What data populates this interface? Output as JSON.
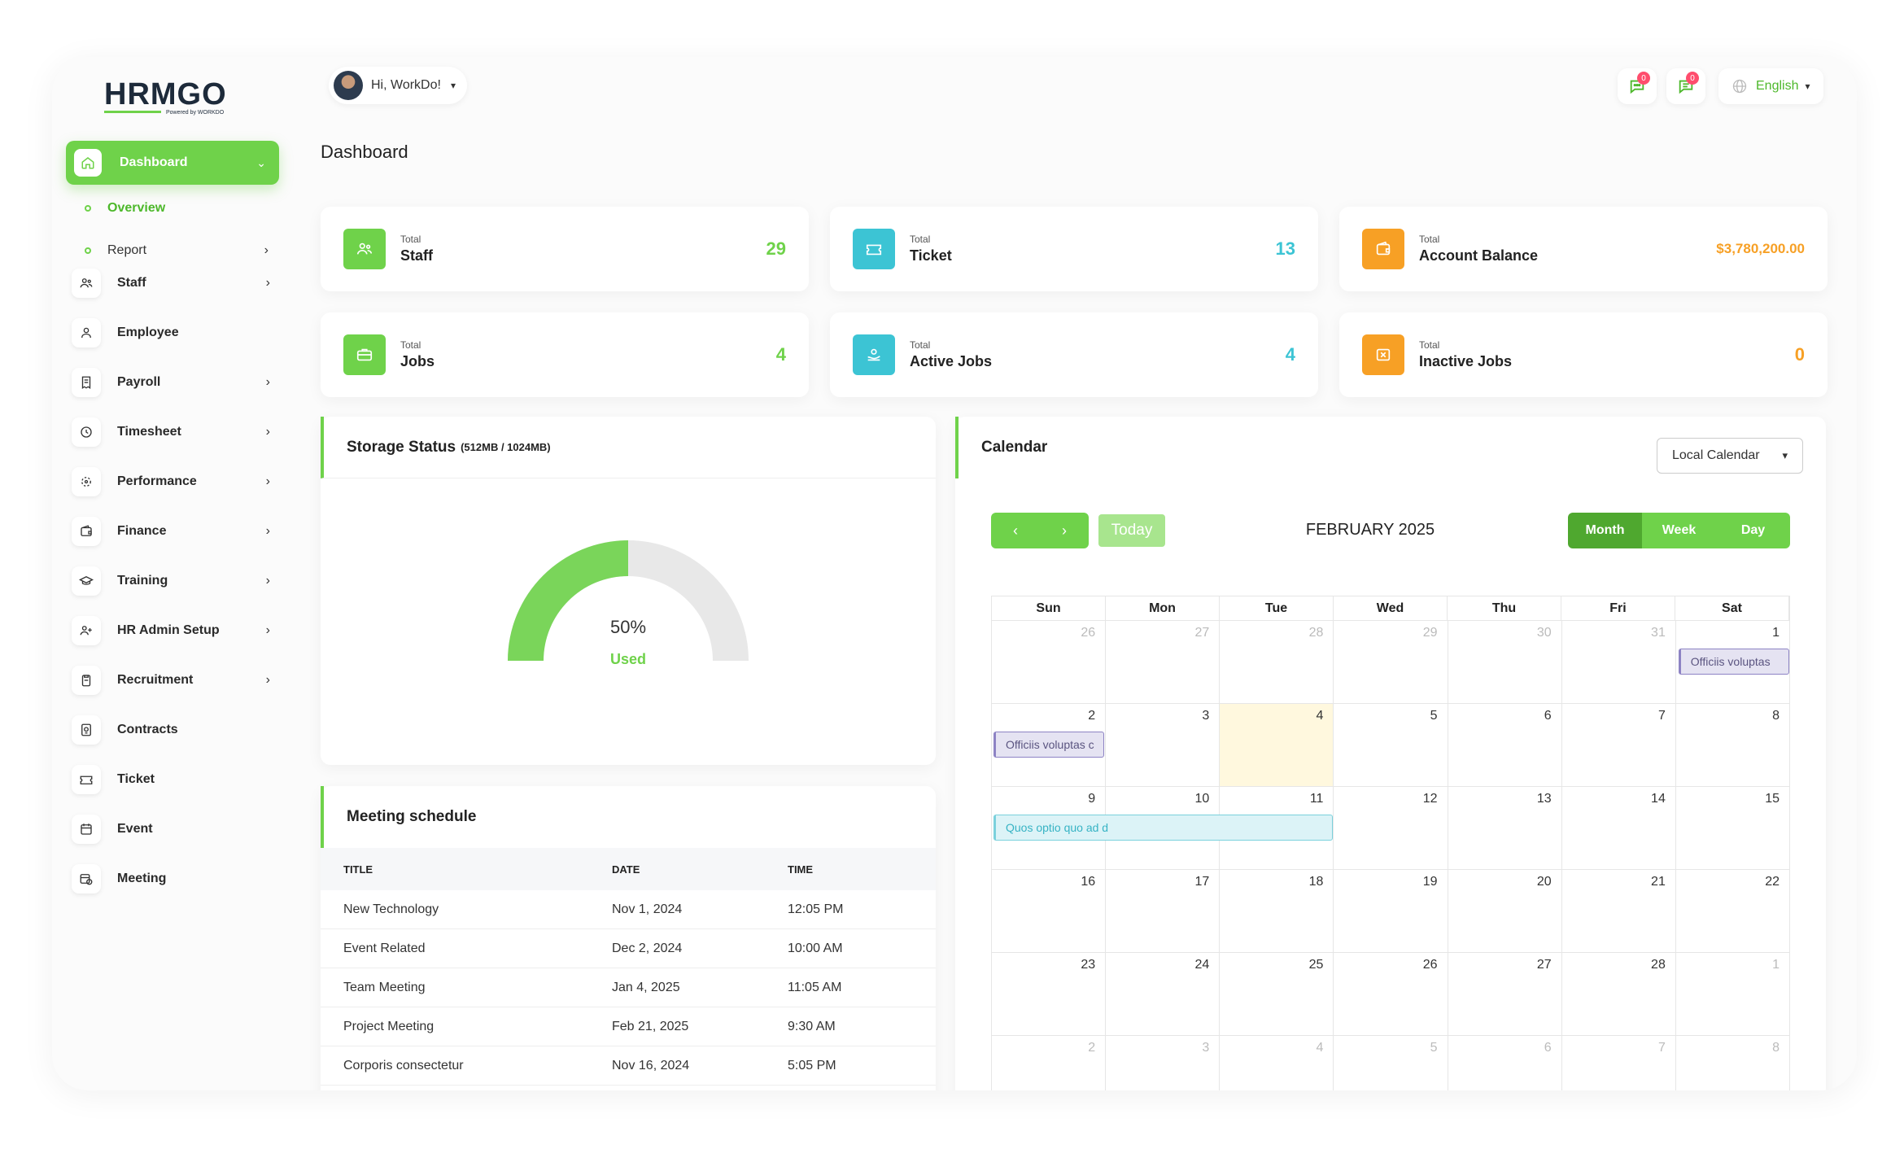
{
  "brand": {
    "logo_text": "HRMGO",
    "tagline": "Powered by WORKDO"
  },
  "sidebar": {
    "active": {
      "label": "Dashboard"
    },
    "sub_items": [
      {
        "label": "Overview"
      },
      {
        "label": "Report"
      }
    ],
    "items": [
      {
        "label": "Staff",
        "icon": "users-icon",
        "chevron": true
      },
      {
        "label": "Employee",
        "icon": "user-icon",
        "chevron": false
      },
      {
        "label": "Payroll",
        "icon": "receipt-icon",
        "chevron": true
      },
      {
        "label": "Timesheet",
        "icon": "clock-icon",
        "chevron": true
      },
      {
        "label": "Performance",
        "icon": "target-icon",
        "chevron": true
      },
      {
        "label": "Finance",
        "icon": "wallet-icon",
        "chevron": true
      },
      {
        "label": "Training",
        "icon": "graduation-cap-icon",
        "chevron": true
      },
      {
        "label": "HR Admin Setup",
        "icon": "user-plus-icon",
        "chevron": true
      },
      {
        "label": "Recruitment",
        "icon": "clipboard-icon",
        "chevron": true
      },
      {
        "label": "Contracts",
        "icon": "contract-icon",
        "chevron": false
      },
      {
        "label": "Ticket",
        "icon": "ticket-icon",
        "chevron": false
      },
      {
        "label": "Event",
        "icon": "calendar-icon",
        "chevron": false
      },
      {
        "label": "Meeting",
        "icon": "calendar-clock-icon",
        "chevron": false
      }
    ]
  },
  "header": {
    "greeting": "Hi, WorkDo!",
    "chat_badge": "0",
    "notif_badge": "0",
    "language": "English"
  },
  "page_title": "Dashboard",
  "stats": [
    {
      "small": "Total",
      "label": "Staff",
      "value": "29",
      "color": "#6fd24a",
      "icon": "users-icon"
    },
    {
      "small": "Total",
      "label": "Ticket",
      "value": "13",
      "color": "#3cc4d4",
      "icon": "ticket-icon"
    },
    {
      "small": "Total",
      "label": "Account Balance",
      "value": "$3,780,200.00",
      "color": "#f7a025",
      "icon": "wallet-icon"
    },
    {
      "small": "Total",
      "label": "Jobs",
      "value": "4",
      "color": "#6fd24a",
      "icon": "briefcase-icon"
    },
    {
      "small": "Total",
      "label": "Active Jobs",
      "value": "4",
      "color": "#3cc4d4",
      "icon": "hand-coins-icon"
    },
    {
      "small": "Total",
      "label": "Inactive Jobs",
      "value": "0",
      "color": "#f7a025",
      "icon": "box-x-icon"
    }
  ],
  "storage": {
    "title": "Storage Status",
    "detail": "(512MB / 1024MB)",
    "percent_text": "50%",
    "used_label": "Used",
    "used_fraction": 0.5
  },
  "meeting": {
    "title": "Meeting schedule",
    "headers": [
      "TITLE",
      "DATE",
      "TIME"
    ],
    "rows": [
      [
        "New Technology",
        "Nov 1, 2024",
        "12:05 PM"
      ],
      [
        "Event Related",
        "Dec 2, 2024",
        "10:00 AM"
      ],
      [
        "Team Meeting",
        "Jan 4, 2025",
        "11:05 AM"
      ],
      [
        "Project Meeting",
        "Feb 21, 2025",
        "9:30 AM"
      ],
      [
        "Corporis consectetur",
        "Nov 16, 2024",
        "5:05 PM"
      ]
    ]
  },
  "calendar": {
    "title": "Calendar",
    "select_value": "Local Calendar",
    "today_label": "Today",
    "month_title": "FEBRUARY 2025",
    "views": [
      "Month",
      "Week",
      "Day"
    ],
    "days_of_week": [
      "Sun",
      "Mon",
      "Tue",
      "Wed",
      "Thu",
      "Fri",
      "Sat"
    ],
    "weeks": [
      [
        "26",
        "27",
        "28",
        "29",
        "30",
        "31",
        "1"
      ],
      [
        "2",
        "3",
        "4",
        "5",
        "6",
        "7",
        "8"
      ],
      [
        "9",
        "10",
        "11",
        "12",
        "13",
        "14",
        "15"
      ],
      [
        "16",
        "17",
        "18",
        "19",
        "20",
        "21",
        "22"
      ],
      [
        "23",
        "24",
        "25",
        "26",
        "27",
        "28",
        "1"
      ],
      [
        "2",
        "3",
        "4",
        "5",
        "6",
        "7",
        "8"
      ]
    ],
    "events": [
      {
        "text": "Officiis voluptas"
      },
      {
        "text": "Officiis voluptas c"
      },
      {
        "text": "Quos optio quo ad d"
      }
    ]
  }
}
